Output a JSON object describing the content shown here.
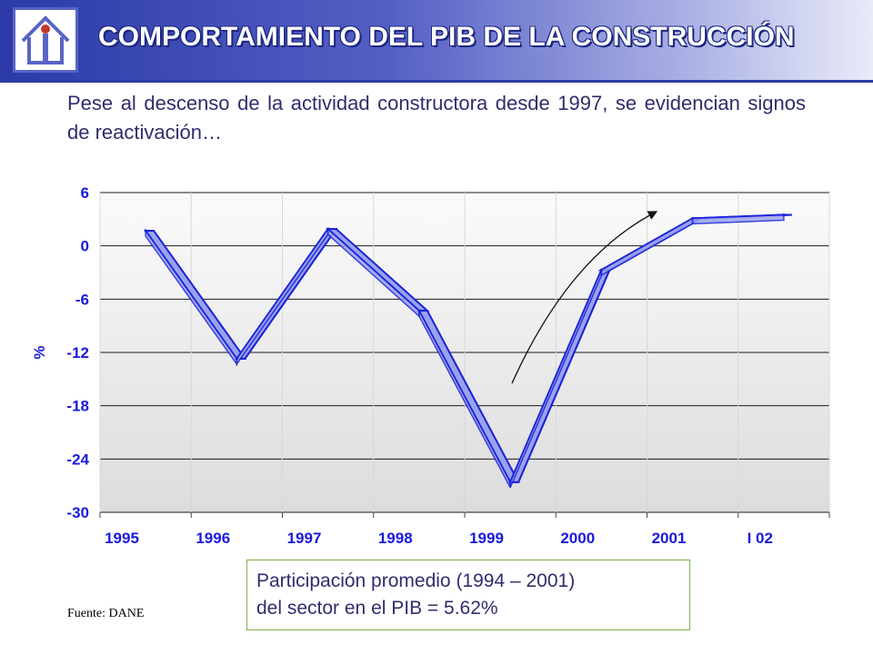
{
  "header": {
    "title": "COMPORTAMIENTO DEL PIB DE LA CONSTRUCCIÓN",
    "logo_icon": "house-arrow-logo-icon"
  },
  "subtitle": "Pese al descenso de la actividad constructora desde 1997, se evidencian signos de reactivación…",
  "chart_data": {
    "type": "line",
    "title": "",
    "xlabel": "",
    "ylabel": "%",
    "categories": [
      "1995",
      "1996",
      "1997",
      "1998",
      "1999",
      "2000",
      "2001",
      "I 02"
    ],
    "series": [
      {
        "values": [
          1.7,
          -12.7,
          1.9,
          -7.3,
          -26.6,
          -2.7,
          3.1,
          3.5
        ]
      }
    ],
    "ylim": [
      -30,
      6
    ],
    "yticks": [
      "6",
      "0",
      "-6",
      "-12",
      "-18",
      "-24",
      "-30"
    ],
    "grid": true,
    "legend": "none",
    "style": "3d-ribbon",
    "colors": {
      "ribbon_top": "#9aa2ee",
      "ribbon_side": "#5a5a98",
      "ribbon_edge": "#1a22d8",
      "axis_text": "#1a1adc",
      "plot_bg": "#f2f2f2"
    },
    "annotation": {
      "type": "curved-arrow",
      "meaning": "reactivation trend"
    }
  },
  "note": {
    "line1": "Participación promedio (1994 – 2001)",
    "line2": "del sector en el PIB = 5.62%"
  },
  "source": "Fuente:  DANE"
}
